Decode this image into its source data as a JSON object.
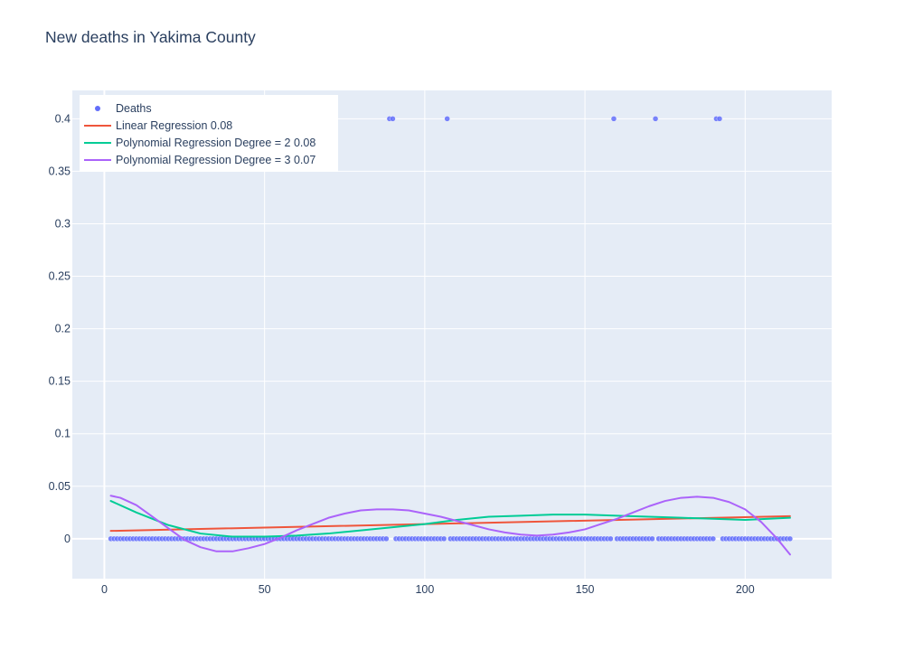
{
  "chart_data": {
    "type": "scatter",
    "title": "New deaths in Yakima County",
    "xlabel": "",
    "ylabel": "",
    "xlim": [
      -10,
      227
    ],
    "ylim": [
      -0.038,
      0.427
    ],
    "x_ticks": [
      0,
      50,
      100,
      150,
      200
    ],
    "y_ticks": [
      0,
      0.05,
      0.1,
      0.15,
      0.2,
      0.25,
      0.3,
      0.35,
      0.4
    ],
    "grid": true,
    "legend_position": "top-left",
    "series": [
      {
        "name": "Deaths",
        "mode": "markers",
        "color": "#636efa",
        "x_start": 2,
        "x_end": 214,
        "default_y": 0,
        "points": [
          {
            "x": 89,
            "y": 0.4
          },
          {
            "x": 90,
            "y": 0.4
          },
          {
            "x": 107,
            "y": 0.4
          },
          {
            "x": 159,
            "y": 0.4
          },
          {
            "x": 172,
            "y": 0.4
          },
          {
            "x": 191,
            "y": 0.4
          },
          {
            "x": 192,
            "y": 0.4
          }
        ]
      },
      {
        "name": "Linear Regression 0.08",
        "mode": "lines",
        "color": "#ef553b",
        "x": [
          2,
          214
        ],
        "y": [
          0.0075,
          0.0215
        ]
      },
      {
        "name": "Polynomial Regression Degree = 2 0.08",
        "mode": "lines",
        "color": "#00cc96",
        "x": [
          2,
          10,
          20,
          30,
          40,
          50,
          60,
          70,
          80,
          90,
          100,
          110,
          120,
          130,
          140,
          150,
          160,
          170,
          180,
          190,
          200,
          214
        ],
        "y": [
          0.036,
          0.025,
          0.013,
          0.005,
          0.002,
          0.002,
          0.003,
          0.005,
          0.008,
          0.011,
          0.014,
          0.018,
          0.021,
          0.022,
          0.023,
          0.023,
          0.022,
          0.021,
          0.02,
          0.019,
          0.018,
          0.02
        ]
      },
      {
        "name": "Polynomial Regression Degree = 3 0.07",
        "mode": "lines",
        "color": "#ab63fa",
        "x": [
          2,
          5,
          10,
          15,
          20,
          25,
          30,
          35,
          40,
          45,
          50,
          55,
          60,
          65,
          70,
          75,
          80,
          85,
          90,
          95,
          100,
          105,
          110,
          115,
          120,
          125,
          130,
          135,
          140,
          145,
          150,
          155,
          160,
          165,
          170,
          175,
          180,
          185,
          190,
          195,
          200,
          205,
          210,
          214
        ],
        "y": [
          0.041,
          0.039,
          0.032,
          0.021,
          0.01,
          -0.001,
          -0.008,
          -0.012,
          -0.012,
          -0.009,
          -0.005,
          0.001,
          0.008,
          0.014,
          0.02,
          0.024,
          0.027,
          0.028,
          0.028,
          0.027,
          0.024,
          0.021,
          0.017,
          0.013,
          0.009,
          0.006,
          0.004,
          0.003,
          0.004,
          0.006,
          0.009,
          0.014,
          0.019,
          0.025,
          0.031,
          0.036,
          0.039,
          0.04,
          0.039,
          0.035,
          0.028,
          0.016,
          0.0,
          -0.015
        ]
      }
    ]
  }
}
